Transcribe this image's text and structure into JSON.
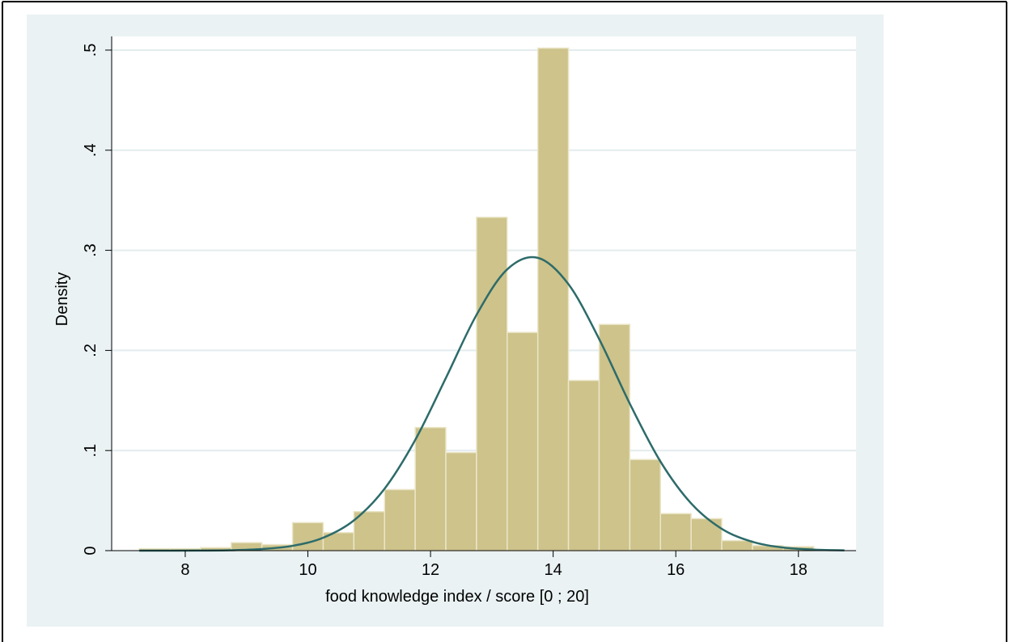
{
  "chart_data": {
    "type": "histogram",
    "x_label": "food knowledge index / score [0 ; 20]",
    "y_label": "Density",
    "bins": [
      7.25,
      7.75,
      8.25,
      8.75,
      9.25,
      9.75,
      10.25,
      10.75,
      11.25,
      11.75,
      12.25,
      12.75,
      13.25,
      13.75,
      14.25,
      14.75,
      15.25,
      15.75,
      16.25,
      16.75,
      17.25,
      17.75,
      18.25
    ],
    "values": [
      0.002,
      0.002,
      0.003,
      0.008,
      0.006,
      0.028,
      0.018,
      0.039,
      0.061,
      0.123,
      0.098,
      0.333,
      0.218,
      0.502,
      0.17,
      0.226,
      0.091,
      0.037,
      0.032,
      0.01,
      0.005,
      0.004
    ],
    "color": "#cdc38b",
    "overlay": {
      "type": "line",
      "color": "#2d6b6a",
      "x": [
        7.25,
        7.75,
        8.25,
        8.75,
        9.25,
        9.75,
        10.25,
        10.75,
        11.25,
        11.75,
        12.25,
        12.75,
        13.25,
        13.75,
        14.25,
        14.75,
        15.25,
        15.75,
        16.25,
        16.75,
        17.25,
        17.75,
        18.25,
        18.75
      ],
      "values": [
        0.0,
        0.0,
        0.0001,
        0.0004,
        0.0016,
        0.0048,
        0.0129,
        0.0302,
        0.0618,
        0.1105,
        0.1724,
        0.2355,
        0.2809,
        0.2925,
        0.2661,
        0.2114,
        0.1468,
        0.089,
        0.0472,
        0.0218,
        0.0088,
        0.0031,
        0.001,
        0.0003
      ]
    },
    "xlim": [
      6.8,
      18.94
    ],
    "xticks": [
      8,
      10,
      12,
      14,
      16,
      18
    ],
    "ylim": [
      0,
      0.5137
    ],
    "yticks": [
      0,
      {
        "value": 0.1,
        "label": ".1"
      },
      {
        "value": 0.2,
        "label": ".2"
      },
      {
        "value": 0.3,
        "label": ".3"
      },
      {
        "value": 0.4,
        "label": ".4"
      },
      {
        "value": 0.5,
        "label": ".5"
      }
    ],
    "grid": true
  }
}
